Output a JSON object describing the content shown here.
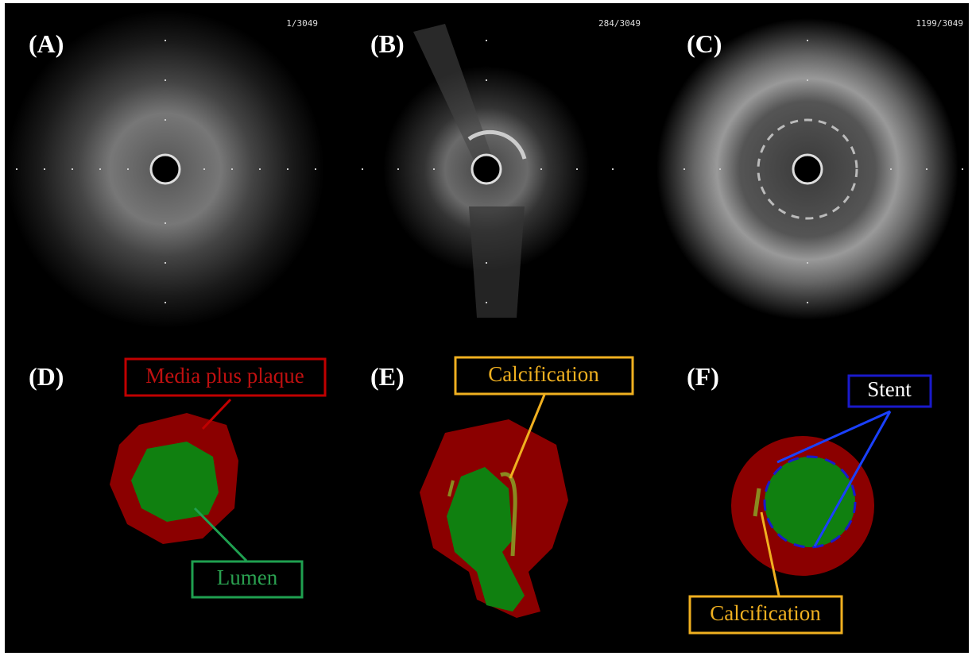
{
  "panels": [
    {
      "label": "(A)",
      "frame": "1/3049"
    },
    {
      "label": "(B)",
      "frame": "284/3049"
    },
    {
      "label": "(C)",
      "frame": "1199/3049"
    },
    {
      "label": "(D)"
    },
    {
      "label": "(E)"
    },
    {
      "label": "(F)"
    }
  ],
  "annotations": {
    "d_media": "Media plus plaque",
    "d_lumen": "Lumen",
    "e_calcification": "Calcification",
    "f_stent": "Stent",
    "f_calcification": "Calcification"
  }
}
